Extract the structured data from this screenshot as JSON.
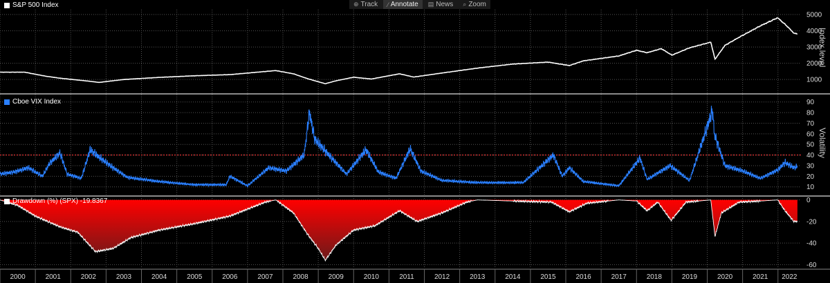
{
  "toolbar": {
    "items": [
      {
        "label": "Track",
        "icon": "crosshair-icon"
      },
      {
        "label": "Annotate",
        "icon": "pencil-icon"
      },
      {
        "label": "News",
        "icon": "news-icon"
      },
      {
        "label": "Zoom",
        "icon": "magnifier-icon"
      }
    ]
  },
  "colors": {
    "spx": "#ffffff",
    "vix": "#2a7fff",
    "threshold": "#ff3b3b",
    "drawdown_fill": "#ff0000"
  },
  "chart_data": [
    {
      "type": "line",
      "legend": "S&P 500 Index",
      "ylabel": "Index level",
      "ylim": [
        200,
        5300
      ],
      "yticks": [
        1000,
        2000,
        3000,
        4000,
        5000
      ],
      "x": [
        2000,
        2000.7,
        2001.3,
        2001.7,
        2002.5,
        2002.8,
        2003.5,
        2004.5,
        2005.5,
        2006.5,
        2007.8,
        2008.3,
        2008.7,
        2009.2,
        2009.5,
        2010,
        2010.5,
        2011.3,
        2011.7,
        2012.5,
        2013.5,
        2014.5,
        2015.5,
        2016.1,
        2016.5,
        2017.5,
        2018,
        2018.3,
        2018.7,
        2019,
        2019.5,
        2020.1,
        2020.22,
        2020.5,
        2020.9,
        2021.5,
        2021.99,
        2022.25,
        2022.45,
        2022.55
      ],
      "values": [
        1450,
        1450,
        1200,
        1080,
        900,
        820,
        1000,
        1130,
        1230,
        1300,
        1550,
        1350,
        1050,
        740,
        920,
        1140,
        1030,
        1350,
        1150,
        1400,
        1700,
        1950,
        2070,
        1860,
        2150,
        2450,
        2800,
        2650,
        2900,
        2500,
        2950,
        3300,
        2250,
        3100,
        3600,
        4300,
        4800,
        4300,
        3850,
        3800
      ]
    },
    {
      "type": "line",
      "legend": "Cboe VIX Index",
      "ylabel": "Volatility",
      "ylim": [
        2,
        95
      ],
      "yticks": [
        10,
        20,
        30,
        40,
        50,
        60,
        70,
        80,
        90
      ],
      "threshold": 40,
      "x": [
        2000,
        2000.4,
        2000.8,
        2001.2,
        2001.4,
        2001.7,
        2001.9,
        2002.3,
        2002.55,
        2002.8,
        2003.2,
        2003.6,
        2004.5,
        2005.5,
        2006.4,
        2006.5,
        2007,
        2007.6,
        2008.1,
        2008.6,
        2008.75,
        2008.9,
        2009.3,
        2009.8,
        2010.35,
        2010.7,
        2011.2,
        2011.6,
        2011.9,
        2012.5,
        2013.5,
        2014.8,
        2015.65,
        2015.9,
        2016.1,
        2016.5,
        2017.5,
        2018.1,
        2018.3,
        2018.95,
        2019.5,
        2020.15,
        2020.2,
        2020.5,
        2021,
        2021.5,
        2022,
        2022.2,
        2022.45,
        2022.55
      ],
      "values": [
        22,
        24,
        28,
        20,
        32,
        42,
        22,
        18,
        45,
        38,
        28,
        19,
        15,
        12,
        12,
        20,
        11,
        28,
        25,
        40,
        80,
        55,
        40,
        22,
        45,
        24,
        18,
        46,
        25,
        16,
        14,
        14,
        40,
        20,
        28,
        15,
        11,
        37,
        17,
        30,
        16,
        82,
        60,
        30,
        25,
        18,
        26,
        33,
        28,
        29
      ]
    },
    {
      "type": "area",
      "legend": "Drawdown (%) (SPX) -19.8367",
      "ylim": [
        -63,
        3
      ],
      "yticks": [
        0,
        -20,
        -40,
        -60
      ],
      "xticks": [
        "2000",
        "2001",
        "2002",
        "2003",
        "2004",
        "2005",
        "2006",
        "2007",
        "2008",
        "2009",
        "2010",
        "2011",
        "2012",
        "2013",
        "2014",
        "2015",
        "2016",
        "2017",
        "2018",
        "2019",
        "2020",
        "2021",
        "2022"
      ],
      "x": [
        2000,
        2000.5,
        2001,
        2001.7,
        2002.2,
        2002.7,
        2003.2,
        2003.7,
        2004.5,
        2005.5,
        2006.5,
        2007.5,
        2007.8,
        2008.3,
        2008.7,
        2009.0,
        2009.2,
        2009.5,
        2010,
        2010.6,
        2011.3,
        2011.8,
        2012.5,
        2013.2,
        2013.5,
        2014.5,
        2015.6,
        2016.1,
        2016.6,
        2017.5,
        2018,
        2018.3,
        2018.6,
        2018.98,
        2019.4,
        2020.1,
        2020.22,
        2020.4,
        2020.9,
        2021.5,
        2021.99,
        2022.2,
        2022.45,
        2022.55
      ],
      "values": [
        0,
        -5,
        -15,
        -25,
        -30,
        -48,
        -45,
        -35,
        -28,
        -22,
        -15,
        -2,
        0,
        -12,
        -32,
        -45,
        -56,
        -42,
        -28,
        -24,
        -10,
        -20,
        -12,
        -2,
        0,
        -1,
        -2,
        -11,
        -3,
        0,
        -1,
        -10,
        -2,
        -19,
        -2,
        0,
        -34,
        -12,
        -2,
        -1,
        0,
        -10,
        -20,
        -19.8
      ]
    }
  ]
}
